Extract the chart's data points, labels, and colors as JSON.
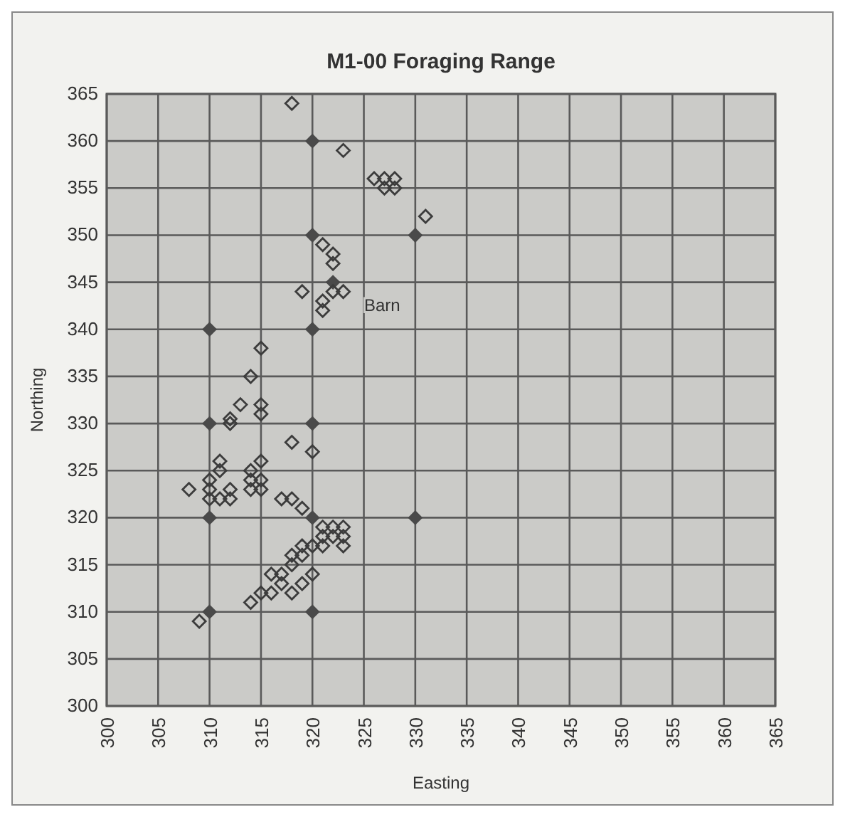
{
  "chart_data": {
    "type": "scatter",
    "title": "M1-00 Foraging Range",
    "xlabel": "Easting",
    "ylabel": "Northing",
    "xlim": [
      300,
      365
    ],
    "ylim": [
      300,
      365
    ],
    "xticks": [
      300,
      305,
      310,
      315,
      320,
      325,
      330,
      335,
      340,
      345,
      350,
      355,
      360,
      365
    ],
    "yticks": [
      300,
      305,
      310,
      315,
      320,
      325,
      330,
      335,
      340,
      345,
      350,
      355,
      360,
      365
    ],
    "grid": true,
    "marker": "diamond",
    "annotations": [
      "Barn"
    ],
    "series": [
      {
        "color": "#4a4a4a",
        "x": [
          320,
          320,
          330,
          322,
          310,
          320,
          310,
          320,
          310,
          330,
          320,
          310,
          320
        ],
        "values": [
          360,
          350,
          350,
          345,
          340,
          340,
          330,
          330,
          320,
          320,
          320,
          310,
          310
        ]
      },
      {
        "color": "#3c3c3c",
        "x": [
          318,
          323,
          326,
          327,
          328,
          327,
          328,
          331,
          321,
          322,
          322,
          323,
          322,
          319,
          321,
          321,
          315,
          314,
          313,
          312,
          312,
          315,
          315,
          318,
          320,
          311,
          311,
          308,
          310,
          310,
          310,
          311,
          312,
          312,
          315,
          314,
          314,
          315,
          315,
          314,
          317,
          318,
          319,
          321,
          322,
          323,
          323,
          323,
          322,
          321,
          321,
          320,
          319,
          318,
          319,
          314,
          315,
          316,
          317,
          318,
          319,
          320,
          309,
          316,
          317,
          318
        ],
        "values": [
          364,
          359,
          356,
          355,
          356,
          356,
          355,
          352,
          349,
          348,
          347,
          344,
          344,
          344,
          343,
          342,
          338,
          335,
          332,
          330.5,
          330,
          332,
          331,
          328,
          327,
          326,
          325,
          323,
          324,
          323,
          322,
          322,
          323,
          322,
          326,
          325,
          324,
          324,
          323,
          323,
          322,
          322,
          321,
          319,
          319,
          319,
          318,
          317,
          318,
          318,
          317,
          317,
          317,
          316,
          316,
          311,
          312,
          312,
          313,
          312,
          313,
          314,
          309,
          314,
          314,
          315
        ]
      }
    ]
  }
}
